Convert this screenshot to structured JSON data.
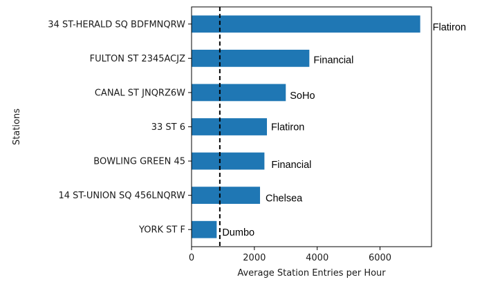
{
  "chart_data": {
    "type": "bar",
    "orientation": "horizontal",
    "categories": [
      "34 ST-HERALD SQ BDFMNQRW",
      "FULTON ST 2345ACJZ",
      "CANAL ST JNQRZ6W",
      "33 ST 6",
      "BOWLING GREEN 45",
      "14 ST-UNION SQ 456LNQRW",
      "YORK ST F"
    ],
    "values": [
      7280,
      3750,
      3000,
      2400,
      2320,
      2180,
      800
    ],
    "annotations": [
      "Flatiron",
      "Financial",
      "SoHo",
      "Flatiron",
      "Financial",
      "Chelsea",
      "Dumbo"
    ],
    "title": "",
    "xlabel": "Average Station Entries per Hour",
    "ylabel": "Stations",
    "xlim": [
      0,
      7640
    ],
    "xticks": [
      0,
      2000,
      4000,
      6000
    ],
    "reference_line": {
      "x": 900,
      "style": "dashed",
      "color": "#000000"
    },
    "bar_color": "#1f77b4",
    "grid": false
  }
}
